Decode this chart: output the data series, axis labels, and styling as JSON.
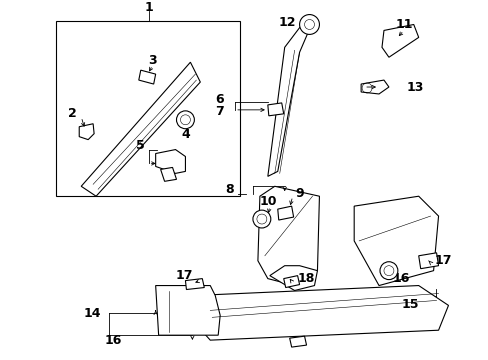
{
  "bg_color": "#ffffff",
  "figsize": [
    4.89,
    3.6
  ],
  "dpi": 100,
  "fs_label": 8,
  "lw_part": 0.8,
  "lw_line": 0.6
}
